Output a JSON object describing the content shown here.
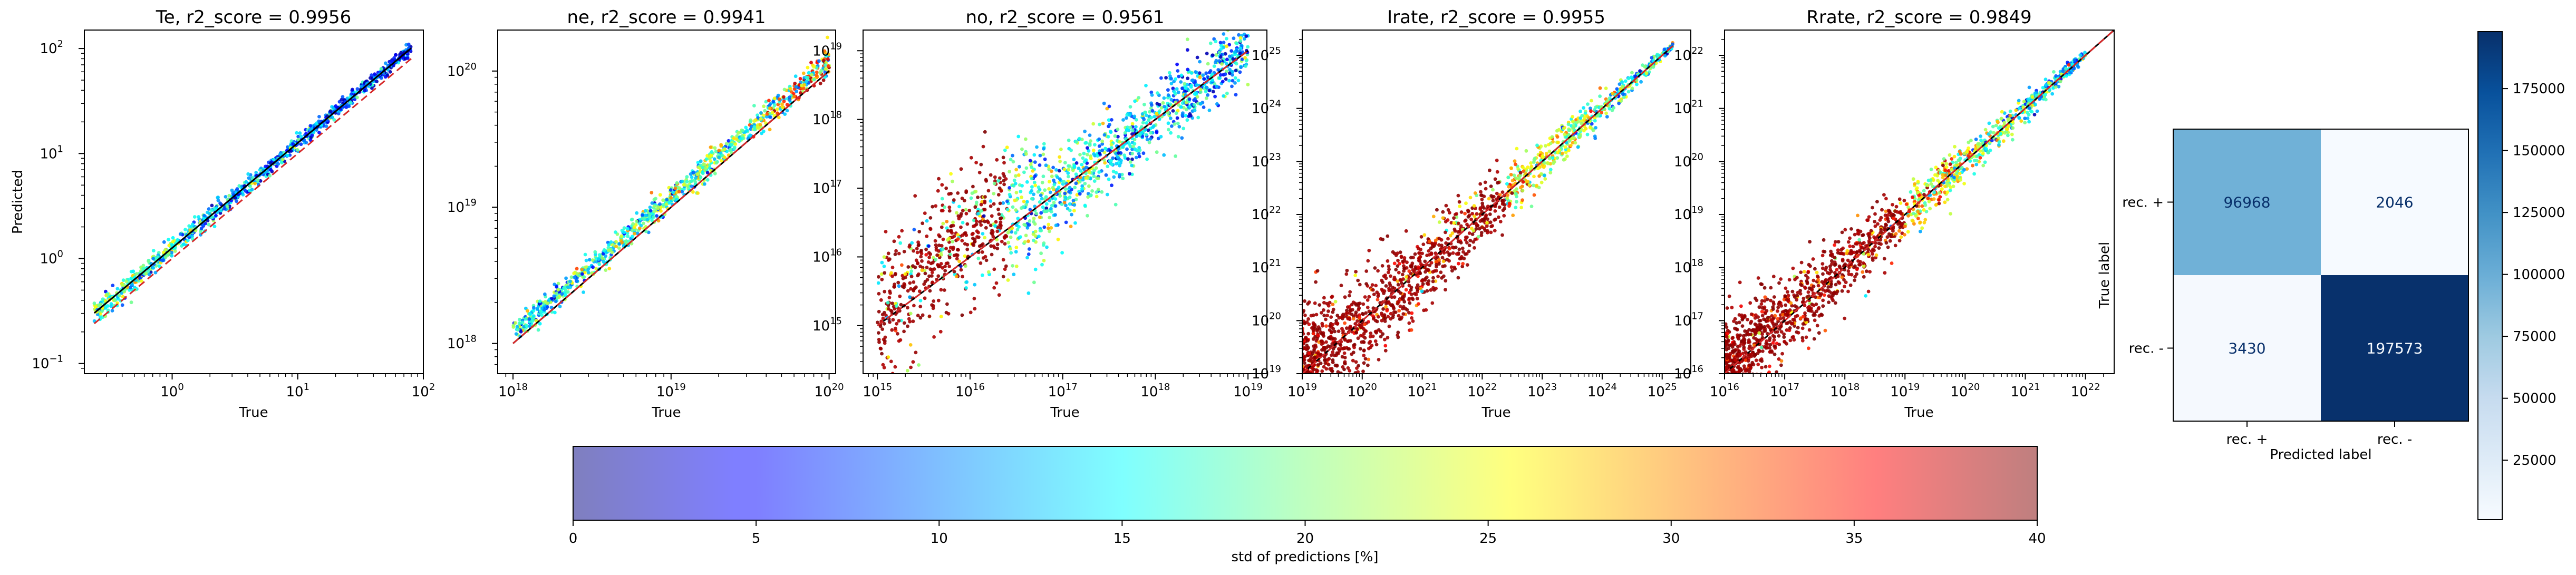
{
  "chart_data": [
    {
      "type": "scatter",
      "title": "Te, r2_score = 0.9956",
      "xlabel": "True",
      "ylabel": "Predicted",
      "x_scale": "log",
      "y_scale": "log",
      "xlim": [
        0.2,
        100
      ],
      "ylim": [
        0.08,
        150
      ],
      "x_ticks": [
        {
          "v": 1,
          "m": "10",
          "e": "0"
        },
        {
          "v": 10,
          "m": "10",
          "e": "1"
        },
        {
          "v": 100,
          "m": "10",
          "e": "2"
        }
      ],
      "y_ticks": [
        {
          "v": 0.1,
          "m": "10",
          "e": "−1"
        },
        {
          "v": 1,
          "m": "10",
          "e": "0"
        },
        {
          "v": 10,
          "m": "10",
          "e": "1"
        },
        {
          "v": 100,
          "m": "10",
          "e": "2"
        }
      ],
      "trend": {
        "x_min": 0.24,
        "x_max": 80,
        "slope": 1.0,
        "offset": 0.1
      },
      "reference_line": {
        "color": "#d62728",
        "style": "dashed",
        "x_min": 0.24,
        "x_max": 80
      }
    },
    {
      "type": "scatter",
      "title": "ne, r2_score = 0.9941",
      "xlabel": "True",
      "ylabel": "",
      "x_scale": "log",
      "y_scale": "log",
      "xlim": [
        8e+17,
        1.1e+20
      ],
      "ylim": [
        6e+17,
        2e+20
      ],
      "x_ticks": [
        {
          "v": 1e+18,
          "m": "10",
          "e": "18"
        },
        {
          "v": 1e+19,
          "m": "10",
          "e": "19"
        },
        {
          "v": 1e+20,
          "m": "10",
          "e": "20"
        }
      ],
      "y_ticks": [
        {
          "v": 1e+18,
          "m": "10",
          "e": "18"
        },
        {
          "v": 1e+19,
          "m": "10",
          "e": "19"
        },
        {
          "v": 1e+20,
          "m": "10",
          "e": "20"
        }
      ],
      "trend": {
        "x_min": 1e+18,
        "x_max": 1e+20,
        "slope": 1.0,
        "offset": 0.07
      },
      "reference_line": {
        "color": "#d62728",
        "style": "dashed",
        "x_min": 1e+18,
        "x_max": 1e+20
      }
    },
    {
      "type": "scatter",
      "title": "no, r2_score = 0.9561",
      "xlabel": "True",
      "ylabel": "",
      "x_scale": "log",
      "y_scale": "log",
      "xlim": [
        700000000000000.0,
        1.6e+19
      ],
      "ylim": [
        200000000000000.0,
        2e+19
      ],
      "x_ticks": [
        {
          "v": 1000000000000000.0,
          "m": "10",
          "e": "15"
        },
        {
          "v": 1e+16,
          "m": "10",
          "e": "16"
        },
        {
          "v": 1e+17,
          "m": "10",
          "e": "17"
        },
        {
          "v": 1e+18,
          "m": "10",
          "e": "18"
        },
        {
          "v": 1e+19,
          "m": "10",
          "e": "19"
        }
      ],
      "y_ticks": [
        {
          "v": 1000000000000000.0,
          "m": "10",
          "e": "15"
        },
        {
          "v": 1e+16,
          "m": "10",
          "e": "16"
        },
        {
          "v": 1e+17,
          "m": "10",
          "e": "17"
        },
        {
          "v": 1e+18,
          "m": "10",
          "e": "18"
        },
        {
          "v": 1e+19,
          "m": "10",
          "e": "19"
        }
      ],
      "trend": {
        "x_min": 1000000000000000.0,
        "x_max": 1e+19,
        "slope": 1.0,
        "offset": 0.0
      },
      "reference_line": {
        "color": "#d62728",
        "style": "dashed",
        "x_min": 1000000000000000.0,
        "x_max": 1e+19
      }
    },
    {
      "type": "scatter",
      "title": "Irate, r2_score = 0.9955",
      "xlabel": "True",
      "ylabel": "",
      "x_scale": "log",
      "y_scale": "log",
      "xlim": [
        1e+19,
        3e+25
      ],
      "ylim": [
        1e+19,
        3e+25
      ],
      "x_ticks": [
        {
          "v": 1e+19,
          "m": "10",
          "e": "19"
        },
        {
          "v": 1e+20,
          "m": "10",
          "e": "20"
        },
        {
          "v": 1e+21,
          "m": "10",
          "e": "21"
        },
        {
          "v": 1e+22,
          "m": "10",
          "e": "22"
        },
        {
          "v": 1e+23,
          "m": "10",
          "e": "23"
        },
        {
          "v": 1e+24,
          "m": "10",
          "e": "24"
        },
        {
          "v": 1e+25,
          "m": "10",
          "e": "25"
        }
      ],
      "y_ticks": [
        {
          "v": 1e+19,
          "m": "10",
          "e": "19"
        },
        {
          "v": 1e+20,
          "m": "10",
          "e": "20"
        },
        {
          "v": 1e+21,
          "m": "10",
          "e": "21"
        },
        {
          "v": 1e+22,
          "m": "10",
          "e": "22"
        },
        {
          "v": 1e+23,
          "m": "10",
          "e": "23"
        },
        {
          "v": 1e+24,
          "m": "10",
          "e": "24"
        },
        {
          "v": 1e+25,
          "m": "10",
          "e": "25"
        }
      ],
      "trend": {
        "x_min": 1e+19,
        "x_max": 1.5e+25,
        "slope": 1.0,
        "offset": 0.0
      },
      "reference_line": {
        "color": "#d62728",
        "style": "dashed",
        "x_min": 1e+19,
        "x_max": 1.5e+25
      }
    },
    {
      "type": "scatter",
      "title": "Rrate, r2_score = 0.9849",
      "xlabel": "True",
      "ylabel": "",
      "x_scale": "log",
      "y_scale": "log",
      "xlim": [
        1e+16,
        3e+22
      ],
      "ylim": [
        1e+16,
        3e+22
      ],
      "x_ticks": [
        {
          "v": 1e+16,
          "m": "10",
          "e": "16"
        },
        {
          "v": 1e+17,
          "m": "10",
          "e": "17"
        },
        {
          "v": 1e+18,
          "m": "10",
          "e": "18"
        },
        {
          "v": 1e+19,
          "m": "10",
          "e": "19"
        },
        {
          "v": 1e+20,
          "m": "10",
          "e": "20"
        },
        {
          "v": 1e+21,
          "m": "10",
          "e": "21"
        },
        {
          "v": 1e+22,
          "m": "10",
          "e": "22"
        }
      ],
      "y_ticks": [
        {
          "v": 1e+16,
          "m": "10",
          "e": "16"
        },
        {
          "v": 1e+17,
          "m": "10",
          "e": "17"
        },
        {
          "v": 1e+18,
          "m": "10",
          "e": "18"
        },
        {
          "v": 1e+19,
          "m": "10",
          "e": "19"
        },
        {
          "v": 1e+20,
          "m": "10",
          "e": "20"
        },
        {
          "v": 1e+21,
          "m": "10",
          "e": "21"
        },
        {
          "v": 1e+22,
          "m": "10",
          "e": "22"
        }
      ],
      "trend": {
        "x_min": 1e+16,
        "x_max": 1e+22,
        "slope": 1.0,
        "offset": 0.0
      },
      "reference_line": {
        "color": "#d62728",
        "style": "dashed",
        "x_min": 1e+16,
        "x_max": 3e+22
      }
    },
    {
      "type": "heatmap",
      "xlabel": "Predicted label",
      "ylabel": "True label",
      "x_categories": [
        "rec. +",
        "rec. -"
      ],
      "y_categories": [
        "rec. +",
        "rec. -"
      ],
      "values": [
        [
          96968,
          2046
        ],
        [
          3430,
          197573
        ]
      ],
      "colormap": "Blues",
      "colorbar": {
        "min": 1000,
        "max": 198000,
        "ticks": [
          25000,
          50000,
          75000,
          100000,
          125000,
          150000,
          175000
        ]
      }
    },
    {
      "type": "colorbar",
      "label": "std of predictions [%]",
      "colormap": "jet",
      "alpha": 0.5,
      "range": [
        0,
        40
      ],
      "ticks": [
        0,
        5,
        10,
        15,
        20,
        25,
        30,
        35,
        40
      ]
    }
  ]
}
